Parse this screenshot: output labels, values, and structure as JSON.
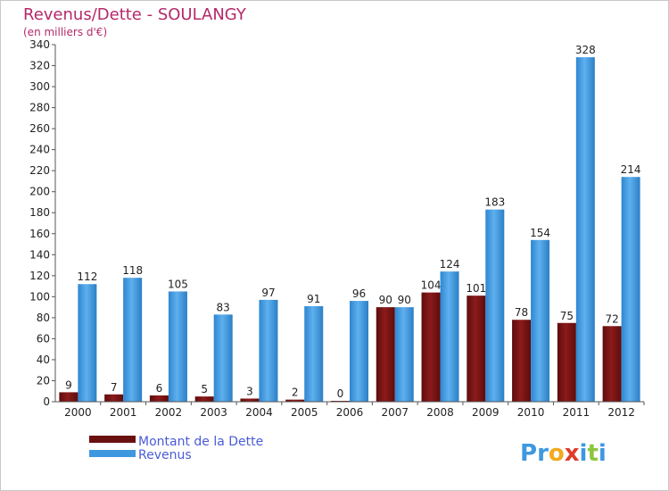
{
  "chart_data": {
    "type": "bar",
    "title": "Revenus/Dette - SOULANGY",
    "subtitle": "(en milliers d'€)",
    "categories": [
      "2000",
      "2001",
      "2002",
      "2003",
      "2004",
      "2005",
      "2006",
      "2007",
      "2008",
      "2009",
      "2010",
      "2011",
      "2012"
    ],
    "series": [
      {
        "name": "Montant de la Dette",
        "color": "#7a1515",
        "values": [
          9,
          7,
          6,
          5,
          3,
          2,
          0,
          90,
          104,
          101,
          78,
          75,
          72
        ]
      },
      {
        "name": "Revenus",
        "color": "#3d98e0",
        "values": [
          112,
          118,
          105,
          83,
          97,
          91,
          96,
          90,
          124,
          183,
          154,
          328,
          214
        ]
      }
    ],
    "ylim": [
      0,
      340
    ],
    "yticks": [
      0,
      20,
      40,
      60,
      80,
      100,
      120,
      140,
      160,
      180,
      200,
      220,
      240,
      260,
      280,
      300,
      320,
      340
    ],
    "grid": false,
    "legend_position": "bottom-left"
  },
  "logo": {
    "letters": [
      {
        "ch": "P",
        "color": "#3d98e0"
      },
      {
        "ch": "r",
        "color": "#3d98e0"
      },
      {
        "ch": "o",
        "color": "#f2a91c"
      },
      {
        "ch": "x",
        "color": "#e03b2a"
      },
      {
        "ch": "i",
        "color": "#3d98e0"
      },
      {
        "ch": "t",
        "color": "#8cc63f"
      },
      {
        "ch": "i",
        "color": "#3d98e0"
      }
    ]
  }
}
